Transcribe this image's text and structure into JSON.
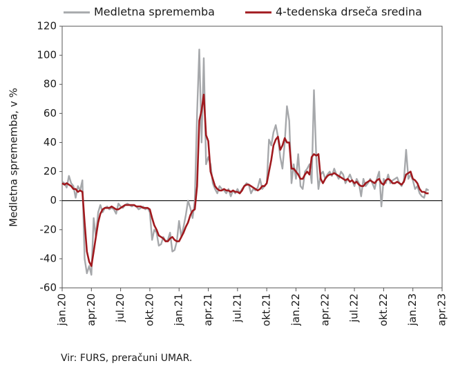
{
  "chart_data": {
    "type": "line",
    "categories": [
      "jan.20",
      null,
      null,
      null,
      null,
      null,
      null,
      null,
      null,
      null,
      null,
      null,
      null,
      "apr.20",
      null,
      null,
      null,
      null,
      null,
      null,
      null,
      null,
      null,
      null,
      null,
      null,
      "jul.20",
      null,
      null,
      null,
      null,
      null,
      null,
      null,
      null,
      null,
      null,
      null,
      null,
      "okt.20",
      null,
      null,
      null,
      null,
      null,
      null,
      null,
      null,
      null,
      null,
      null,
      null,
      "jan.21",
      null,
      null,
      null,
      null,
      null,
      null,
      null,
      null,
      null,
      null,
      null,
      null,
      "apr.21",
      null,
      null,
      null,
      null,
      null,
      null,
      null,
      null,
      null,
      null,
      null,
      null,
      "jul.21",
      null,
      null,
      null,
      null,
      null,
      null,
      null,
      null,
      null,
      null,
      null,
      null,
      "okt.21",
      null,
      null,
      null,
      null,
      null,
      null,
      null,
      null,
      null,
      null,
      null,
      null,
      "jan.22",
      null,
      null,
      null,
      null,
      null,
      null,
      null,
      null,
      null,
      null,
      null,
      null,
      "apr.22",
      null,
      null,
      null,
      null,
      null,
      null,
      null,
      null,
      null,
      null,
      null,
      null,
      "jul.22",
      null,
      null,
      null,
      null,
      null,
      null,
      null,
      null,
      null,
      null,
      null,
      null,
      "okt.22",
      null,
      null,
      null,
      null,
      null,
      null,
      null,
      null,
      null,
      null,
      null,
      null,
      "jan.23",
      null,
      null,
      null,
      null,
      null,
      null,
      null,
      null,
      null,
      null,
      null,
      null,
      "apr.23"
    ],
    "series": [
      {
        "name": "Medletna sprememba",
        "color": "#a6a8ab",
        "values": [
          13,
          12,
          9,
          17,
          12,
          10,
          2,
          10,
          7,
          14,
          -40,
          -50,
          -45,
          -51,
          -12,
          -25,
          -8,
          -3,
          -8,
          -5,
          -4,
          -6,
          -5,
          -6,
          -9,
          -2,
          -4,
          -5,
          -3,
          -2,
          -3,
          -4,
          -3,
          -4,
          -6,
          -5,
          -4,
          -6,
          -5,
          -8,
          -27,
          -20,
          -22,
          -31,
          -30,
          -25,
          -28,
          -27,
          -22,
          -35,
          -34,
          -28,
          -14,
          -25,
          -18,
          -10,
          0,
          -5,
          -12,
          0,
          60,
          104,
          40,
          98,
          25,
          30,
          25,
          12,
          8,
          5,
          10,
          8,
          7,
          5,
          8,
          3,
          7,
          5,
          8,
          5,
          8,
          10,
          12,
          11,
          5,
          8,
          7,
          9,
          15,
          8,
          10,
          12,
          42,
          38,
          47,
          52,
          44,
          30,
          22,
          40,
          65,
          55,
          12,
          25,
          15,
          32,
          10,
          8,
          20,
          22,
          25,
          12,
          76,
          30,
          8,
          18,
          20,
          15,
          18,
          20,
          17,
          22,
          18,
          15,
          20,
          18,
          12,
          15,
          18,
          14,
          10,
          15,
          12,
          3,
          15,
          10,
          12,
          15,
          12,
          8,
          15,
          20,
          -4,
          15,
          12,
          18,
          12,
          14,
          15,
          16,
          12,
          10,
          14,
          35,
          15,
          18,
          14,
          8,
          10,
          5,
          3,
          2,
          8,
          7,
          null,
          null,
          null,
          null,
          null,
          null
        ]
      },
      {
        "name": "4-tedenska drseča sredina",
        "color": "#a0191e",
        "values": [
          12,
          11,
          12,
          11,
          10,
          8,
          8,
          6,
          7,
          6,
          -15,
          -35,
          -42,
          -45,
          -35,
          -25,
          -15,
          -9,
          -6,
          -5,
          -5,
          -5,
          -4,
          -5,
          -6,
          -6,
          -5,
          -4,
          -3,
          -3,
          -3,
          -3,
          -3,
          -4,
          -4,
          -4,
          -5,
          -5,
          -5,
          -6,
          -12,
          -17,
          -20,
          -24,
          -25,
          -26,
          -28,
          -28,
          -26,
          -25,
          -27,
          -28,
          -28,
          -25,
          -22,
          -18,
          -15,
          -10,
          -7,
          -6,
          10,
          55,
          62,
          73,
          45,
          41,
          20,
          15,
          10,
          8,
          7,
          7,
          8,
          7,
          7,
          6,
          7,
          6,
          6,
          5,
          7,
          10,
          11,
          11,
          10,
          9,
          8,
          7,
          8,
          10,
          10,
          12,
          20,
          28,
          38,
          42,
          44,
          35,
          38,
          43,
          40,
          40,
          22,
          22,
          20,
          18,
          15,
          15,
          18,
          20,
          18,
          30,
          32,
          31,
          32,
          15,
          12,
          15,
          17,
          18,
          18,
          19,
          18,
          17,
          16,
          15,
          14,
          15,
          13,
          14,
          12,
          13,
          11,
          10,
          10,
          12,
          13,
          14,
          13,
          12,
          14,
          15,
          12,
          11,
          14,
          15,
          14,
          12,
          12,
          13,
          12,
          11,
          13,
          18,
          19,
          20,
          15,
          14,
          12,
          8,
          6,
          6,
          5,
          5,
          null,
          null,
          null,
          null,
          null,
          null
        ]
      }
    ],
    "ylabel": "Medletna sprememba, v %",
    "ylim": [
      -60,
      120
    ],
    "yticks": [
      -60,
      -40,
      -20,
      0,
      20,
      40,
      60,
      80,
      100,
      120
    ],
    "source": "Vir: FURS, preračuni UMAR."
  }
}
